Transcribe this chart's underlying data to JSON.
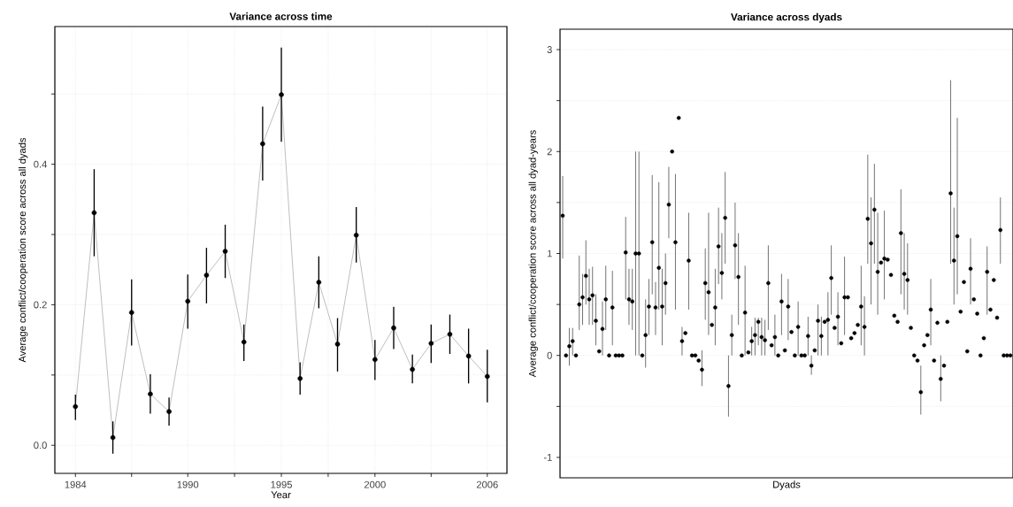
{
  "chart_data": [
    {
      "type": "line",
      "title": "Variance across time",
      "xlabel": "Year",
      "ylabel": "Average conflict/cooperation score across all dyads",
      "x": [
        1984,
        1985,
        1986,
        1987,
        1988,
        1989,
        1990,
        1991,
        1992,
        1993,
        1994,
        1995,
        1996,
        1997,
        1998,
        1999,
        2000,
        2001,
        2002,
        2003,
        2004,
        2005,
        2006
      ],
      "values": [
        0.055,
        0.331,
        0.011,
        0.189,
        0.073,
        0.048,
        0.205,
        0.242,
        0.276,
        0.147,
        0.429,
        0.499,
        0.095,
        0.232,
        0.144,
        0.299,
        0.122,
        0.167,
        0.108,
        0.145,
        0.158,
        0.127,
        0.098
      ],
      "errors": [
        [
          0.036,
          0.072
        ],
        [
          0.269,
          0.393
        ],
        [
          -0.012,
          0.034
        ],
        [
          0.142,
          0.236
        ],
        [
          0.045,
          0.101
        ],
        [
          0.028,
          0.068
        ],
        [
          0.166,
          0.243
        ],
        [
          0.202,
          0.281
        ],
        [
          0.238,
          0.314
        ],
        [
          0.12,
          0.172
        ],
        [
          0.377,
          0.482
        ],
        [
          0.432,
          0.566
        ],
        [
          0.072,
          0.118
        ],
        [
          0.195,
          0.269
        ],
        [
          0.105,
          0.181
        ],
        [
          0.26,
          0.339
        ],
        [
          0.093,
          0.15
        ],
        [
          0.137,
          0.197
        ],
        [
          0.088,
          0.129
        ],
        [
          0.117,
          0.172
        ],
        [
          0.13,
          0.186
        ],
        [
          0.088,
          0.166
        ],
        [
          0.061,
          0.136
        ]
      ],
      "color": "#000000",
      "marker": "circle",
      "grid": true,
      "xlim": [
        1982.9,
        2007.05
      ],
      "ylim": [
        -0.04,
        0.596
      ],
      "xticks": [
        1984,
        {
          "value": 1987,
          "label": null
        },
        1990,
        {
          "value": 1992.5,
          "label": null
        },
        1995,
        {
          "value": 1997.5,
          "label": null
        },
        2000,
        {
          "value": 2003,
          "label": null
        },
        2006
      ],
      "yticks": [
        {
          "value": 0,
          "label": "0.0"
        },
        {
          "value": 0.1,
          "label": null
        },
        0.2,
        {
          "value": 0.3,
          "label": null
        },
        0.4,
        {
          "value": 0.5,
          "label": null
        }
      ]
    },
    {
      "type": "scatter",
      "title": "Variance across dyads",
      "xlabel": "Dyads",
      "ylabel": "Average conflict/cooperation score across all dyad-years",
      "categories": [
        null,
        null,
        null,
        null,
        null,
        null,
        null,
        null,
        null,
        null,
        null,
        null,
        null,
        null,
        null,
        null,
        null,
        null,
        null,
        null,
        null,
        null,
        null,
        null,
        null,
        null,
        null,
        null,
        null,
        null,
        null,
        null,
        null,
        null,
        null,
        null,
        null,
        null,
        null,
        null,
        null,
        null,
        null,
        null,
        null,
        null,
        null,
        null,
        null,
        null,
        null,
        null,
        null,
        null,
        null,
        null,
        null,
        null,
        null,
        null,
        null,
        null,
        null,
        null,
        null,
        null,
        null,
        null,
        null,
        null,
        null,
        null,
        null,
        null,
        null,
        null,
        null,
        null,
        null,
        null,
        null,
        null,
        null,
        null,
        null,
        null,
        null,
        null,
        null,
        null,
        null,
        null,
        null,
        null,
        null,
        null,
        null,
        null,
        null,
        null,
        null,
        null,
        null,
        null,
        null,
        null,
        null,
        null,
        null,
        null,
        null,
        null,
        null,
        null,
        null,
        null,
        null,
        null,
        null,
        null,
        null,
        null,
        null,
        null,
        null,
        null,
        null,
        null,
        null,
        null,
        null,
        null,
        null,
        null,
        null,
        null
      ],
      "values": [
        1.37,
        0,
        0.09,
        0.14,
        0,
        0.5,
        0.57,
        0.78,
        0.55,
        0.59,
        0.34,
        0.04,
        0.26,
        0.55,
        0,
        0.47,
        0,
        0,
        0,
        1.01,
        0.55,
        0.53,
        1,
        1,
        0,
        0.2,
        0.48,
        1.11,
        0.47,
        0.86,
        0.48,
        0.71,
        1.48,
        2,
        1.11,
        2.33,
        0.14,
        0.22,
        0.93,
        0,
        0,
        -0.05,
        -0.14,
        0.71,
        0.62,
        0.3,
        0.47,
        1.07,
        0.81,
        1.35,
        -0.3,
        0.2,
        1.08,
        0.77,
        0,
        0.42,
        0.03,
        0.14,
        0.2,
        0.33,
        0.18,
        0.15,
        0.71,
        0.1,
        0.18,
        0,
        0.53,
        0.05,
        0.48,
        0.23,
        0,
        0.28,
        0,
        0,
        0.19,
        -0.1,
        0.05,
        0.34,
        0.19,
        0.33,
        0.35,
        0.76,
        0.27,
        0.38,
        0.12,
        0.57,
        0.57,
        0.17,
        0.22,
        0.3,
        0.48,
        0.28,
        1.34,
        1.1,
        1.43,
        0.82,
        0.91,
        0.95,
        0.94,
        0.79,
        0.39,
        0.33,
        1.2,
        0.8,
        0.74,
        0.27,
        0,
        -0.05,
        -0.36,
        0.1,
        0.2,
        0.45,
        -0.05,
        0.32,
        -0.23,
        -0.1,
        0.33,
        1.59,
        0.93,
        1.17,
        0.43,
        0.72,
        0.04,
        0.85,
        0.55,
        0.41,
        0,
        0.17,
        0.82,
        0.45,
        0.74,
        0.37,
        1.23,
        0,
        0,
        0
      ],
      "errors": [
        [
          0.95,
          1.76
        ],
        null,
        [
          -0.1,
          0.27
        ],
        [
          0,
          0.27
        ],
        null,
        [
          0.25,
          0.98
        ],
        [
          0.3,
          0.8
        ],
        [
          0.5,
          1.13
        ],
        [
          0.3,
          0.85
        ],
        [
          0.3,
          0.87
        ],
        [
          0.1,
          0.6
        ],
        null,
        [
          0,
          0.53
        ],
        [
          0.25,
          0.88
        ],
        null,
        [
          0.1,
          0.83
        ],
        null,
        null,
        null,
        [
          0.55,
          1.36
        ],
        [
          0.3,
          0.85
        ],
        [
          0.25,
          0.85
        ],
        [
          0,
          2
        ],
        [
          0,
          2
        ],
        null,
        [
          -0.12,
          0.55
        ],
        [
          0.2,
          0.75
        ],
        [
          0.6,
          1.77
        ],
        [
          0.2,
          0.72
        ],
        [
          0.45,
          1.7
        ],
        [
          0.1,
          0.85
        ],
        [
          0.4,
          1.0
        ],
        [
          1.15,
          1.85
        ],
        null,
        [
          0.45,
          1.78
        ],
        null,
        [
          0,
          0.28
        ],
        null,
        [
          0.45,
          1.4
        ],
        null,
        null,
        null,
        [
          -0.3,
          0.05
        ],
        [
          0.35,
          1.05
        ],
        [
          0.2,
          1.4
        ],
        null,
        [
          0.1,
          0.85
        ],
        [
          0.7,
          1.45
        ],
        [
          0.55,
          1.2
        ],
        [
          0.9,
          1.8
        ],
        [
          -0.6,
          0
        ],
        [
          0,
          0.4
        ],
        [
          0.75,
          1.5
        ],
        [
          0.3,
          1.2
        ],
        null,
        [
          0,
          0.88
        ],
        null,
        [
          0,
          0.28
        ],
        [
          0,
          0.37
        ],
        [
          0.1,
          0.37
        ],
        [
          0,
          0.37
        ],
        [
          0,
          0.35
        ],
        [
          0.25,
          1.08
        ],
        null,
        [
          0,
          0.4
        ],
        null,
        [
          0.2,
          0.8
        ],
        null,
        [
          0.15,
          0.75
        ],
        null,
        null,
        [
          0,
          0.53
        ],
        null,
        null,
        [
          0,
          0.38
        ],
        [
          -0.19,
          0
        ],
        null,
        [
          0,
          0.5
        ],
        [
          0,
          0.38
        ],
        null,
        [
          0,
          0.62
        ],
        [
          0.4,
          1.08
        ],
        null,
        [
          0.1,
          0.62
        ],
        null,
        [
          0.2,
          0.97
        ],
        null,
        null,
        null,
        null,
        [
          0.1,
          0.88
        ],
        [
          0,
          0.58
        ],
        [
          0.9,
          1.97
        ],
        [
          0.5,
          1.55
        ],
        [
          0.9,
          1.88
        ],
        [
          0.4,
          1.4
        ],
        null,
        [
          0.55,
          1.42
        ],
        null,
        null,
        null,
        null,
        [
          0.6,
          1.63
        ],
        [
          0.45,
          1.2
        ],
        [
          0.4,
          1.1
        ],
        null,
        null,
        null,
        [
          -0.58,
          -0.1
        ],
        null,
        null,
        [
          0.1,
          0.75
        ],
        null,
        null,
        [
          -0.45,
          0
        ],
        null,
        null,
        [
          0.9,
          2.7
        ],
        [
          0.5,
          1.45
        ],
        [
          0.6,
          2.33
        ],
        null,
        null,
        null,
        [
          0.5,
          1.15
        ],
        null,
        null,
        null,
        null,
        [
          0.4,
          1.07
        ],
        null,
        null,
        null,
        [
          0.9,
          1.55
        ],
        null,
        null,
        null
      ],
      "color": "#000000",
      "marker": "circle",
      "grid": "y",
      "tick_labels": "y",
      "ylim": [
        -1.2,
        3.2
      ],
      "yticks": [
        -1,
        {
          "value": -0.5,
          "label": null
        },
        0,
        {
          "value": 0.5,
          "label": null
        },
        1,
        {
          "value": 1.5,
          "label": null
        },
        2,
        {
          "value": 2.5,
          "label": null
        },
        3
      ]
    }
  ]
}
